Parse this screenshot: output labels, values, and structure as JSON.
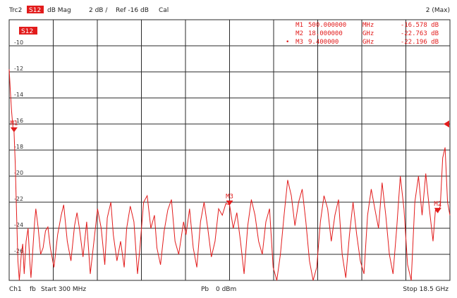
{
  "header": {
    "trace": "Trc2",
    "param": "S12",
    "format": "dB Mag",
    "scale": "2 dB /",
    "ref": "Ref -16 dB",
    "cal": "Cal",
    "trace_right": "2 (Max)"
  },
  "trace_tag": "S12",
  "markers": [
    {
      "name": "M1",
      "freq": "500.000000",
      "unit": "MHz",
      "value": "-16.578 dB"
    },
    {
      "name": "M2",
      "freq": "18.000000",
      "unit": "GHz",
      "value": "-22.763 dB"
    },
    {
      "name": "M3",
      "freq": "9.400000",
      "unit": "GHz",
      "value": "-22.196 dB"
    }
  ],
  "footer": {
    "ch": "Ch1",
    "fb": "fb",
    "start": "Start 300 MHz",
    "pb": "Pb",
    "power": "0 dBm",
    "stop": "Stop 18.5 GHz"
  },
  "colors": {
    "trace": "#e21b1b",
    "grid": "#2a2a2a",
    "background": "#ffffff"
  },
  "chart_data": {
    "type": "line",
    "xlabel": "",
    "ylabel": "",
    "xlim": [
      0.3,
      18.5
    ],
    "ylim": [
      -28,
      -8
    ],
    "y_tick_labels": [
      "-10",
      "-12",
      "-14",
      "-16",
      "-18",
      "-20",
      "-22",
      "-24",
      "-26"
    ],
    "ref_level": -16,
    "grid": true,
    "series": [
      {
        "x": [
          0.3,
          0.35,
          0.4,
          0.45,
          0.5,
          0.55,
          0.6,
          0.66,
          0.72,
          0.8,
          0.86,
          0.92,
          1.0,
          1.08,
          1.15,
          1.2,
          1.28,
          1.35,
          1.4,
          1.5,
          1.6,
          1.7,
          1.8,
          1.9,
          2.0,
          2.15,
          2.3,
          2.45,
          2.55,
          2.7,
          2.85,
          3.0,
          3.1,
          3.2,
          3.35,
          3.5,
          3.65,
          3.8,
          3.95,
          4.1,
          4.25,
          4.35,
          4.5,
          4.6,
          4.75,
          4.9,
          5.05,
          5.15,
          5.3,
          5.45,
          5.6,
          5.7,
          5.85,
          6.0,
          6.15,
          6.3,
          6.4,
          6.55,
          6.7,
          6.85,
          7.0,
          7.15,
          7.3,
          7.5,
          7.6,
          7.75,
          7.9,
          8.05,
          8.2,
          8.35,
          8.5,
          8.65,
          8.8,
          8.95,
          9.1,
          9.25,
          9.4,
          9.55,
          9.7,
          9.85,
          10.0,
          10.15,
          10.3,
          10.45,
          10.6,
          10.75,
          10.9,
          11.05,
          11.2,
          11.35,
          11.5,
          11.65,
          11.8,
          11.95,
          12.1,
          12.25,
          12.4,
          12.55,
          12.7,
          12.85,
          13.0,
          13.15,
          13.3,
          13.45,
          13.6,
          13.75,
          13.9,
          14.05,
          14.2,
          14.35,
          14.5,
          14.65,
          14.8,
          14.95,
          15.1,
          15.25,
          15.4,
          15.55,
          15.7,
          15.85,
          16.0,
          16.15,
          16.3,
          16.45,
          16.6,
          16.75,
          16.9,
          17.05,
          17.2,
          17.35,
          17.5,
          17.65,
          17.8,
          17.9,
          18.0,
          18.1,
          18.2,
          18.3,
          18.4,
          18.5
        ],
        "y": [
          -11.8,
          -13.5,
          -15.0,
          -16.2,
          -16.6,
          -19.0,
          -22.5,
          -26.5,
          -28.0,
          -26.0,
          -25.2,
          -27.5,
          -25.0,
          -24.0,
          -26.5,
          -27.8,
          -25.5,
          -23.5,
          -22.5,
          -24.0,
          -26.0,
          -25.5,
          -24.2,
          -23.9,
          -25.5,
          -27.0,
          -24.5,
          -23.0,
          -22.2,
          -25.0,
          -26.5,
          -23.8,
          -22.8,
          -24.0,
          -26.2,
          -23.5,
          -27.5,
          -25.0,
          -22.5,
          -24.0,
          -26.8,
          -23.2,
          -22.0,
          -24.5,
          -26.5,
          -25.0,
          -27.0,
          -24.0,
          -22.3,
          -23.5,
          -27.5,
          -25.5,
          -22.0,
          -21.5,
          -24.0,
          -23.0,
          -25.5,
          -26.8,
          -24.2,
          -22.6,
          -21.8,
          -25.0,
          -26.0,
          -23.5,
          -24.5,
          -22.5,
          -25.5,
          -27.0,
          -23.5,
          -22.0,
          -24.0,
          -26.2,
          -25.0,
          -22.5,
          -23.0,
          -22.1,
          -22.2,
          -24.0,
          -22.8,
          -25.0,
          -27.5,
          -23.8,
          -21.8,
          -23.0,
          -25.0,
          -26.0,
          -23.5,
          -22.5,
          -27.0,
          -28.0,
          -26.0,
          -23.0,
          -20.3,
          -21.5,
          -23.8,
          -22.0,
          -21.0,
          -23.5,
          -26.5,
          -28.0,
          -27.0,
          -23.5,
          -21.5,
          -22.5,
          -25.0,
          -23.0,
          -21.8,
          -26.0,
          -27.8,
          -24.5,
          -22.0,
          -24.5,
          -26.5,
          -27.5,
          -23.0,
          -21.0,
          -22.5,
          -24.0,
          -20.5,
          -23.0,
          -26.0,
          -27.5,
          -24.0,
          -20.0,
          -22.5,
          -26.8,
          -28.0,
          -22.0,
          -20.0,
          -23.0,
          -19.8,
          -22.5,
          -25.0,
          -22.6,
          -22.8,
          -22.3,
          -18.6,
          -17.8,
          -22.0,
          -23.0
        ]
      }
    ]
  }
}
